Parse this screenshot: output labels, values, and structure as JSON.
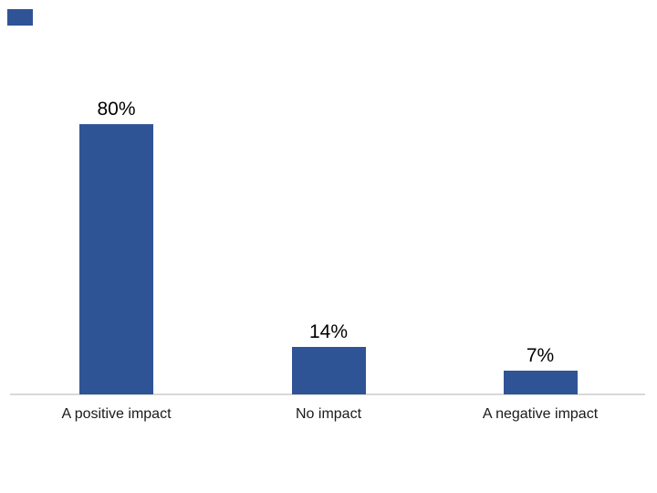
{
  "slide": {
    "background_color": "#ffffff",
    "accent_rect_color": "#2F5496"
  },
  "chart_data": {
    "type": "bar",
    "title": "",
    "xlabel": "",
    "ylabel": "",
    "categories": [
      "A positive impact",
      "No impact",
      "A negative impact"
    ],
    "values": [
      80,
      14,
      7
    ],
    "data_labels": [
      "80%",
      "14%",
      "7%"
    ],
    "bar_color": "#2F5496",
    "axis_line_color": "#D9D9D9",
    "data_label_color": "#000000",
    "category_label_color": "#1a1a1a",
    "ylim": [
      0,
      100
    ],
    "grid": false,
    "legend": false,
    "y_axis_visible": false
  }
}
